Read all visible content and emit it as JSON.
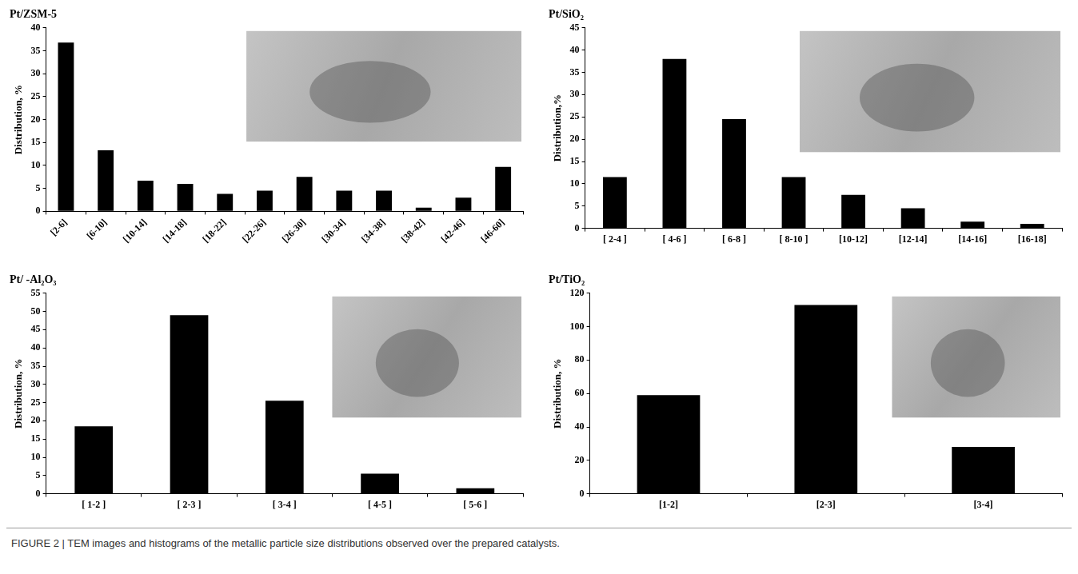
{
  "chart_data": [
    {
      "type": "bar",
      "title": "Pt/ZSM-5",
      "y_label": "Distribution, %",
      "categories": [
        "[2-6]",
        "[6-10]",
        "[10-14]",
        "[14-18]",
        "[18-22]",
        "[22-26]",
        "[26-30]",
        "[30-34]",
        "[34-38]",
        "[38-42]",
        "[42-46]",
        "[46-60]"
      ],
      "values": [
        36.8,
        13.3,
        6.7,
        6.0,
        3.8,
        4.5,
        7.5,
        4.5,
        4.5,
        0.8,
        3.0,
        9.7
      ],
      "color": "#000000",
      "ylim": [
        0,
        40
      ],
      "yticks": [
        0,
        5,
        10,
        15,
        20,
        25,
        30,
        35,
        40
      ],
      "grid": false
    },
    {
      "type": "bar",
      "title": "Pt/SiO₂",
      "y_label": "Distribution,%",
      "categories": [
        "[ 2-4 ]",
        "[ 4-6 ]",
        "[ 6-8 ]",
        "[ 8-10 ]",
        "[10-12]",
        "[12-14]",
        "[14-16]",
        "[16-18]"
      ],
      "values": [
        11.5,
        38.0,
        24.5,
        11.5,
        7.5,
        4.5,
        1.5,
        1.0
      ],
      "color": "#000000",
      "ylim": [
        0,
        45
      ],
      "yticks": [
        0,
        5,
        10,
        15,
        20,
        25,
        30,
        35,
        40,
        45
      ],
      "grid": false
    },
    {
      "type": "bar",
      "title": "Pt/ -Al₂O₃",
      "y_label": "Distribution, %",
      "categories": [
        "[ 1-2 ]",
        "[ 2-3 ]",
        "[ 3-4 ]",
        "[ 4-5 ]",
        "[ 5-6 ]"
      ],
      "values": [
        18.5,
        49.0,
        25.5,
        5.5,
        1.5
      ],
      "color": "#000000",
      "ylim": [
        0,
        55
      ],
      "yticks": [
        0,
        5,
        10,
        15,
        20,
        25,
        30,
        35,
        40,
        45,
        50,
        55
      ],
      "grid": false
    },
    {
      "type": "bar",
      "title": "Pt/TiO₂",
      "y_label": "Distribution, %",
      "categories": [
        "[1-2]",
        "[2-3]",
        "[3-4]"
      ],
      "values": [
        59,
        113,
        28
      ],
      "color": "#000000",
      "ylim": [
        0,
        120
      ],
      "yticks": [
        0,
        20,
        40,
        60,
        80,
        100,
        120
      ],
      "grid": false
    }
  ],
  "caption": "FIGURE 2 | TEM images and histograms of the metallic particle size distributions observed over the prepared catalysts."
}
